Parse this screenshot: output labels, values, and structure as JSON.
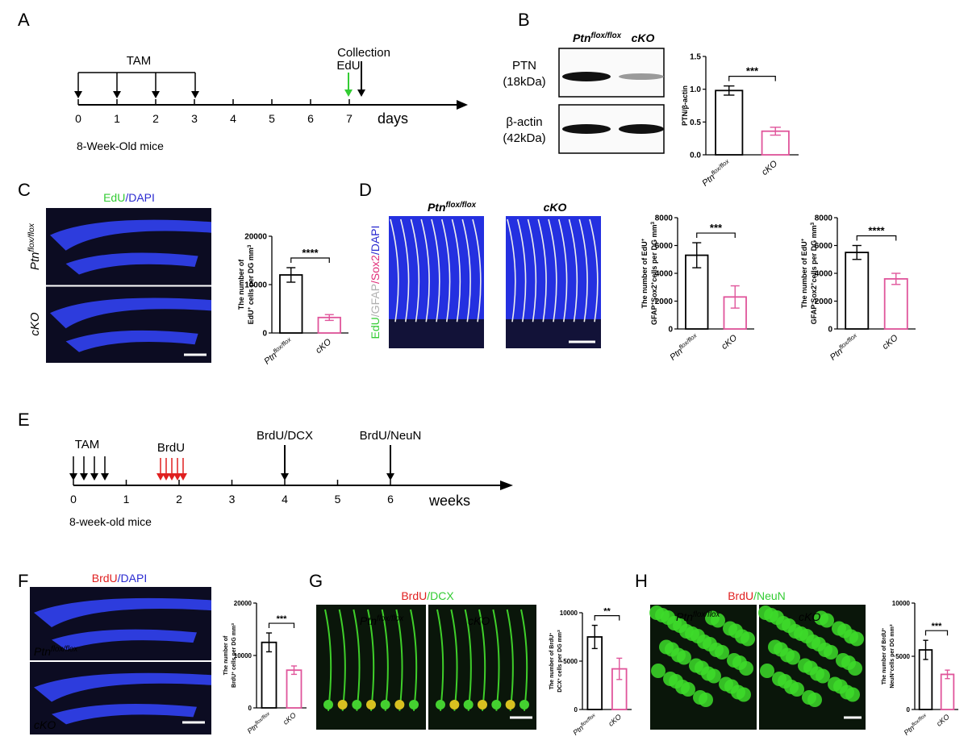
{
  "panels": {
    "a": {
      "label": "A",
      "tam": "TAM",
      "collection": "Collection",
      "edu": "EdU",
      "days": [
        0,
        1,
        2,
        3,
        4,
        5,
        6,
        7
      ],
      "unit": "days",
      "mice": "8-Week-Old mice"
    },
    "b": {
      "label": "B",
      "blot_columns": [
        [
          {
            "text": "Ptn"
          },
          {
            "text": "flox/flox",
            "sup": true
          }
        ],
        [
          {
            "text": "cKO"
          }
        ]
      ],
      "blot_rows": [
        [
          "PTN",
          "(18kDa)"
        ],
        [
          "β-actin",
          "(42kDa)"
        ]
      ],
      "chart": {
        "ylabel": [
          [
            {
              "text": "PTN/β-actin"
            }
          ]
        ],
        "categories": [
          [
            {
              "text": "Ptn"
            },
            {
              "text": "flox/flox",
              "sup": true
            }
          ],
          [
            {
              "text": "cKO"
            }
          ]
        ],
        "values": [
          0.98,
          0.36
        ],
        "errors": [
          0.07,
          0.06
        ],
        "colors": [
          "#000000",
          "#e0559b"
        ],
        "ylim": [
          0,
          1.5
        ],
        "yticks": [
          {
            "value": 0,
            "label": "0.0"
          },
          0.5,
          {
            "value": 1,
            "label": "1.0"
          },
          1.5
        ],
        "significance": "***"
      }
    },
    "c": {
      "label": "C",
      "title": [
        {
          "text": "EdU",
          "color": "#33cc33"
        },
        {
          "text": "/DAPI",
          "color": "#2a2ad0"
        }
      ],
      "rows": [
        [
          {
            "text": "Ptn"
          },
          {
            "text": "flox/flox",
            "sup": true
          }
        ],
        [
          {
            "text": "cKO"
          }
        ]
      ],
      "chart": {
        "ylabel": [
          [
            {
              "text": "The number of"
            }
          ],
          [
            {
              "text": "EdU"
            },
            {
              "text": "+",
              "sup": true
            },
            {
              "text": " cells per DG mm"
            },
            {
              "text": "3",
              "sup": true
            }
          ]
        ],
        "categories": [
          [
            {
              "text": "Ptn"
            },
            {
              "text": "flox/flox",
              "sup": true
            }
          ],
          [
            {
              "text": "cKO"
            }
          ]
        ],
        "values": [
          12000,
          3200
        ],
        "errors": [
          1500,
          600
        ],
        "colors": [
          "#000000",
          "#e0559b"
        ],
        "ylim": [
          0,
          20000
        ],
        "yticks": [
          0,
          10000,
          20000
        ],
        "significance": "****"
      }
    },
    "d": {
      "label": "D",
      "side": [
        {
          "text": "EdU",
          "color": "#33cc33"
        },
        {
          "text": "/GFAP",
          "color": "#b0b0b0"
        },
        {
          "text": "/Sox2",
          "color": "#e0307a"
        },
        {
          "text": "/DAPI",
          "color": "#2a2ad0"
        }
      ],
      "columns": [
        [
          {
            "text": "Ptn"
          },
          {
            "text": "flox/flox",
            "sup": true
          }
        ],
        [
          {
            "text": "cKO"
          }
        ]
      ],
      "charts": [
        {
          "ylabel": [
            [
              {
                "text": "The number of EdU"
              },
              {
                "text": "+",
                "sup": true
              }
            ],
            [
              {
                "text": "GFAP"
              },
              {
                "text": "+",
                "sup": true
              },
              {
                "text": "Sox2"
              },
              {
                "text": "+",
                "sup": true
              },
              {
                "text": "cells per DG mm"
              },
              {
                "text": "3",
                "sup": true
              }
            ]
          ],
          "categories": [
            [
              {
                "text": "Ptn"
              },
              {
                "text": "flox/flox",
                "sup": true
              }
            ],
            [
              {
                "text": "cKO"
              }
            ]
          ],
          "values": [
            5300,
            2300
          ],
          "errors": [
            900,
            800
          ],
          "colors": [
            "#000000",
            "#e0559b"
          ],
          "ylim": [
            0,
            8000
          ],
          "yticks": [
            0,
            2000,
            4000,
            6000,
            8000
          ],
          "significance": "***"
        },
        {
          "ylabel": [
            [
              {
                "text": "The number of EdU"
              },
              {
                "text": "+",
                "sup": true
              }
            ],
            [
              {
                "text": "GFAP"
              },
              {
                "text": "-",
                "sup": true
              },
              {
                "text": "Sox2"
              },
              {
                "text": "+",
                "sup": true
              },
              {
                "text": "cells per DG mm"
              },
              {
                "text": "3",
                "sup": true
              }
            ]
          ],
          "categories": [
            [
              {
                "text": "Ptn"
              },
              {
                "text": "flox/flox",
                "sup": true
              }
            ],
            [
              {
                "text": "cKO"
              }
            ]
          ],
          "values": [
            5500,
            3600
          ],
          "errors": [
            500,
            400
          ],
          "colors": [
            "#000000",
            "#e0559b"
          ],
          "ylim": [
            0,
            8000
          ],
          "yticks": [
            0,
            2000,
            4000,
            6000,
            8000
          ],
          "significance": "****"
        }
      ]
    },
    "e": {
      "label": "E",
      "tam": "TAM",
      "brdu": "BrdU",
      "events": [
        "BrdU/DCX",
        "BrdU/NeuN"
      ],
      "weeks": [
        0,
        1,
        2,
        3,
        4,
        5,
        6
      ],
      "unit": "weeks",
      "mice": "8-week-old mice"
    },
    "f": {
      "label": "F",
      "title": [
        {
          "text": "BrdU",
          "color": "#e02020"
        },
        {
          "text": "/DAPI",
          "color": "#2a2ad0"
        }
      ],
      "rows": [
        [
          {
            "text": "Ptn"
          },
          {
            "text": "flox/flox",
            "sup": true
          }
        ],
        [
          {
            "text": "cKO"
          }
        ]
      ],
      "chart": {
        "ylabel": [
          [
            {
              "text": "The number of"
            }
          ],
          [
            {
              "text": "BrdU"
            },
            {
              "text": "+",
              "sup": true
            },
            {
              "text": " cells per DG mm"
            },
            {
              "text": "3",
              "sup": true
            }
          ]
        ],
        "categories": [
          [
            {
              "text": "Ptn"
            },
            {
              "text": "flox/flox",
              "sup": true
            }
          ],
          [
            {
              "text": "cKO"
            }
          ]
        ],
        "values": [
          12500,
          7200
        ],
        "errors": [
          1800,
          800
        ],
        "colors": [
          "#000000",
          "#e0559b"
        ],
        "ylim": [
          0,
          20000
        ],
        "yticks": [
          0,
          10000,
          20000
        ],
        "significance": "***"
      }
    },
    "g": {
      "label": "G",
      "title": [
        {
          "text": "BrdU",
          "color": "#e02020"
        },
        {
          "text": "/DCX",
          "color": "#33cc33"
        }
      ],
      "columns": [
        [
          {
            "text": "Ptn"
          },
          {
            "text": "flox/flox",
            "sup": true
          }
        ],
        [
          {
            "text": "cKO"
          }
        ]
      ],
      "chart": {
        "ylabel": [
          [
            {
              "text": "The number of BrdU"
            },
            {
              "text": "+",
              "sup": true
            }
          ],
          [
            {
              "text": "DCX"
            },
            {
              "text": "+",
              "sup": true
            },
            {
              "text": " cells per DG mm"
            },
            {
              "text": "3",
              "sup": true
            }
          ]
        ],
        "categories": [
          [
            {
              "text": "Ptn"
            },
            {
              "text": "flox/flox",
              "sup": true
            }
          ],
          [
            {
              "text": "cKO"
            }
          ]
        ],
        "values": [
          7500,
          4200
        ],
        "errors": [
          1200,
          1100
        ],
        "colors": [
          "#000000",
          "#e0559b"
        ],
        "ylim": [
          0,
          10000
        ],
        "yticks": [
          0,
          5000,
          10000
        ],
        "significance": "**"
      }
    },
    "h": {
      "label": "H",
      "title": [
        {
          "text": "BrdU",
          "color": "#e02020"
        },
        {
          "text": "/NeuN",
          "color": "#33cc33"
        }
      ],
      "columns": [
        [
          {
            "text": "Ptn"
          },
          {
            "text": "flox/flox",
            "sup": true
          }
        ],
        [
          {
            "text": "cKO"
          }
        ]
      ],
      "chart": {
        "ylabel": [
          [
            {
              "text": "The number of BrdU"
            },
            {
              "text": "+",
              "sup": true
            }
          ],
          [
            {
              "text": "NeuN"
            },
            {
              "text": "+",
              "sup": true
            },
            {
              "text": "cells per DG mm"
            },
            {
              "text": "3",
              "sup": true
            }
          ]
        ],
        "categories": [
          [
            {
              "text": "Ptn"
            },
            {
              "text": "flox/flox",
              "sup": true
            }
          ],
          [
            {
              "text": "cKO"
            }
          ]
        ],
        "values": [
          5600,
          3300
        ],
        "errors": [
          900,
          400
        ],
        "colors": [
          "#000000",
          "#e0559b"
        ],
        "ylim": [
          0,
          10000
        ],
        "yticks": [
          0,
          5000,
          10000
        ],
        "significance": "***"
      }
    }
  }
}
